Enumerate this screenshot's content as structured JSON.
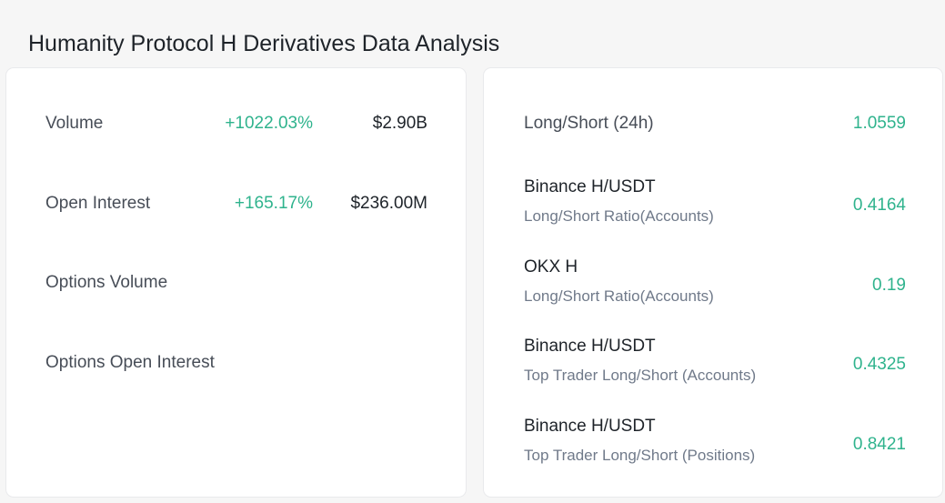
{
  "page": {
    "title": "Humanity Protocol H Derivatives Data Analysis"
  },
  "colors": {
    "positive": "#2fb38d",
    "text_primary": "#1e2329",
    "text_secondary": "#707a8a",
    "card_background": "#ffffff",
    "page_background": "#f6f6f6"
  },
  "market_metrics": [
    {
      "label": "Volume",
      "change": "+1022.03%",
      "value": "$2.90B"
    },
    {
      "label": "Open Interest",
      "change": "+165.17%",
      "value": "$236.00M"
    },
    {
      "label": "Options Volume",
      "change": "",
      "value": ""
    },
    {
      "label": "Options Open Interest",
      "change": "",
      "value": ""
    }
  ],
  "long_short": [
    {
      "title": "Long/Short (24h)",
      "subtitle": "",
      "value": "1.0559"
    },
    {
      "title": "Binance H/USDT",
      "subtitle": "Long/Short Ratio(Accounts)",
      "value": "0.4164"
    },
    {
      "title": "OKX H",
      "subtitle": "Long/Short Ratio(Accounts)",
      "value": "0.19"
    },
    {
      "title": "Binance H/USDT",
      "subtitle": "Top Trader Long/Short (Accounts)",
      "value": "0.4325"
    },
    {
      "title": "Binance H/USDT",
      "subtitle": "Top Trader Long/Short (Positions)",
      "value": "0.8421"
    }
  ]
}
